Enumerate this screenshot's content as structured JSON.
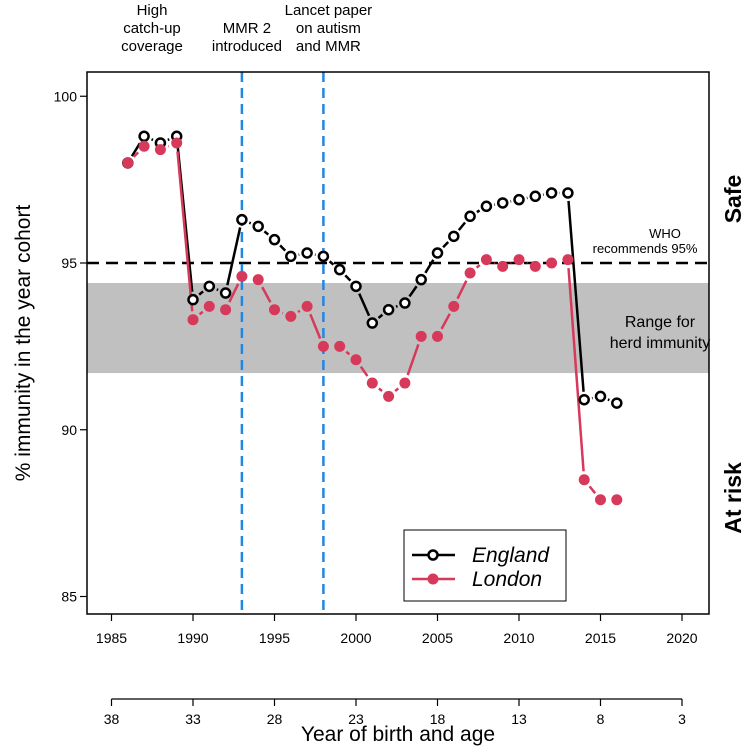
{
  "chart_data": {
    "type": "line",
    "xlabel": "Year of birth and age",
    "ylabel": "% immunity in the year cohort",
    "xlim": [
      1984,
      2021.5
    ],
    "ylim": [
      84.5,
      100.8
    ],
    "x_ticks": [
      1985,
      1990,
      1995,
      2000,
      2005,
      2010,
      2015,
      2020
    ],
    "age_ticks": [
      38,
      33,
      28,
      23,
      18,
      13,
      8,
      3
    ],
    "y_ticks": [
      85,
      90,
      95,
      100
    ],
    "x": [
      1986,
      1987,
      1988,
      1989,
      1990,
      1991,
      1992,
      1993,
      1994,
      1995,
      1996,
      1997,
      1998,
      1999,
      2000,
      2001,
      2002,
      2003,
      2004,
      2005,
      2006,
      2007,
      2008,
      2009,
      2010,
      2011,
      2012,
      2013,
      2014,
      2015,
      2016
    ],
    "series": [
      {
        "name": "England",
        "color": "#000000",
        "marker": "open-circle",
        "values": [
          98.0,
          98.8,
          98.6,
          98.8,
          93.9,
          94.3,
          94.1,
          96.3,
          96.1,
          95.7,
          95.2,
          95.3,
          95.2,
          94.8,
          94.3,
          93.2,
          93.6,
          93.8,
          94.5,
          95.3,
          95.8,
          96.4,
          96.7,
          96.8,
          96.9,
          97.0,
          97.1,
          97.1,
          90.9,
          91.0,
          90.8
        ]
      },
      {
        "name": "London",
        "color": "#d6395a",
        "marker": "filled-circle",
        "values": [
          98.0,
          98.5,
          98.4,
          98.6,
          93.3,
          93.7,
          93.6,
          94.6,
          94.5,
          93.6,
          93.4,
          93.7,
          92.5,
          92.5,
          92.1,
          91.4,
          91.0,
          91.4,
          92.8,
          92.8,
          93.7,
          94.7,
          95.1,
          94.9,
          95.1,
          94.9,
          95.0,
          95.1,
          88.5,
          87.9,
          87.9
        ]
      }
    ],
    "reference_line": {
      "y": 95,
      "label": "WHO recommends 95%",
      "style": "dashed",
      "color": "#000000"
    },
    "band": {
      "y": [
        91.7,
        94.4
      ],
      "label": "Range for herd immunity",
      "color": "#c0c0c0"
    },
    "events": [
      {
        "x": 1988.3,
        "label": "High catch-up coverage",
        "lines": [
          "High",
          "catch-up",
          "coverage"
        ],
        "vline": false
      },
      {
        "x": 1993,
        "label": "MMR 2 introduced",
        "lines": [
          "MMR 2",
          "introduced"
        ],
        "vline": true
      },
      {
        "x": 1998,
        "label": "Lancet paper on autism and MMR",
        "lines": [
          "Lancet paper",
          "on autism",
          "and MMR"
        ],
        "vline": true
      }
    ],
    "vline_color": "#1e88e5",
    "side_labels": {
      "top": "Safe",
      "bottom": "At risk"
    },
    "legend_placement": "bottom-center",
    "grid": false
  }
}
